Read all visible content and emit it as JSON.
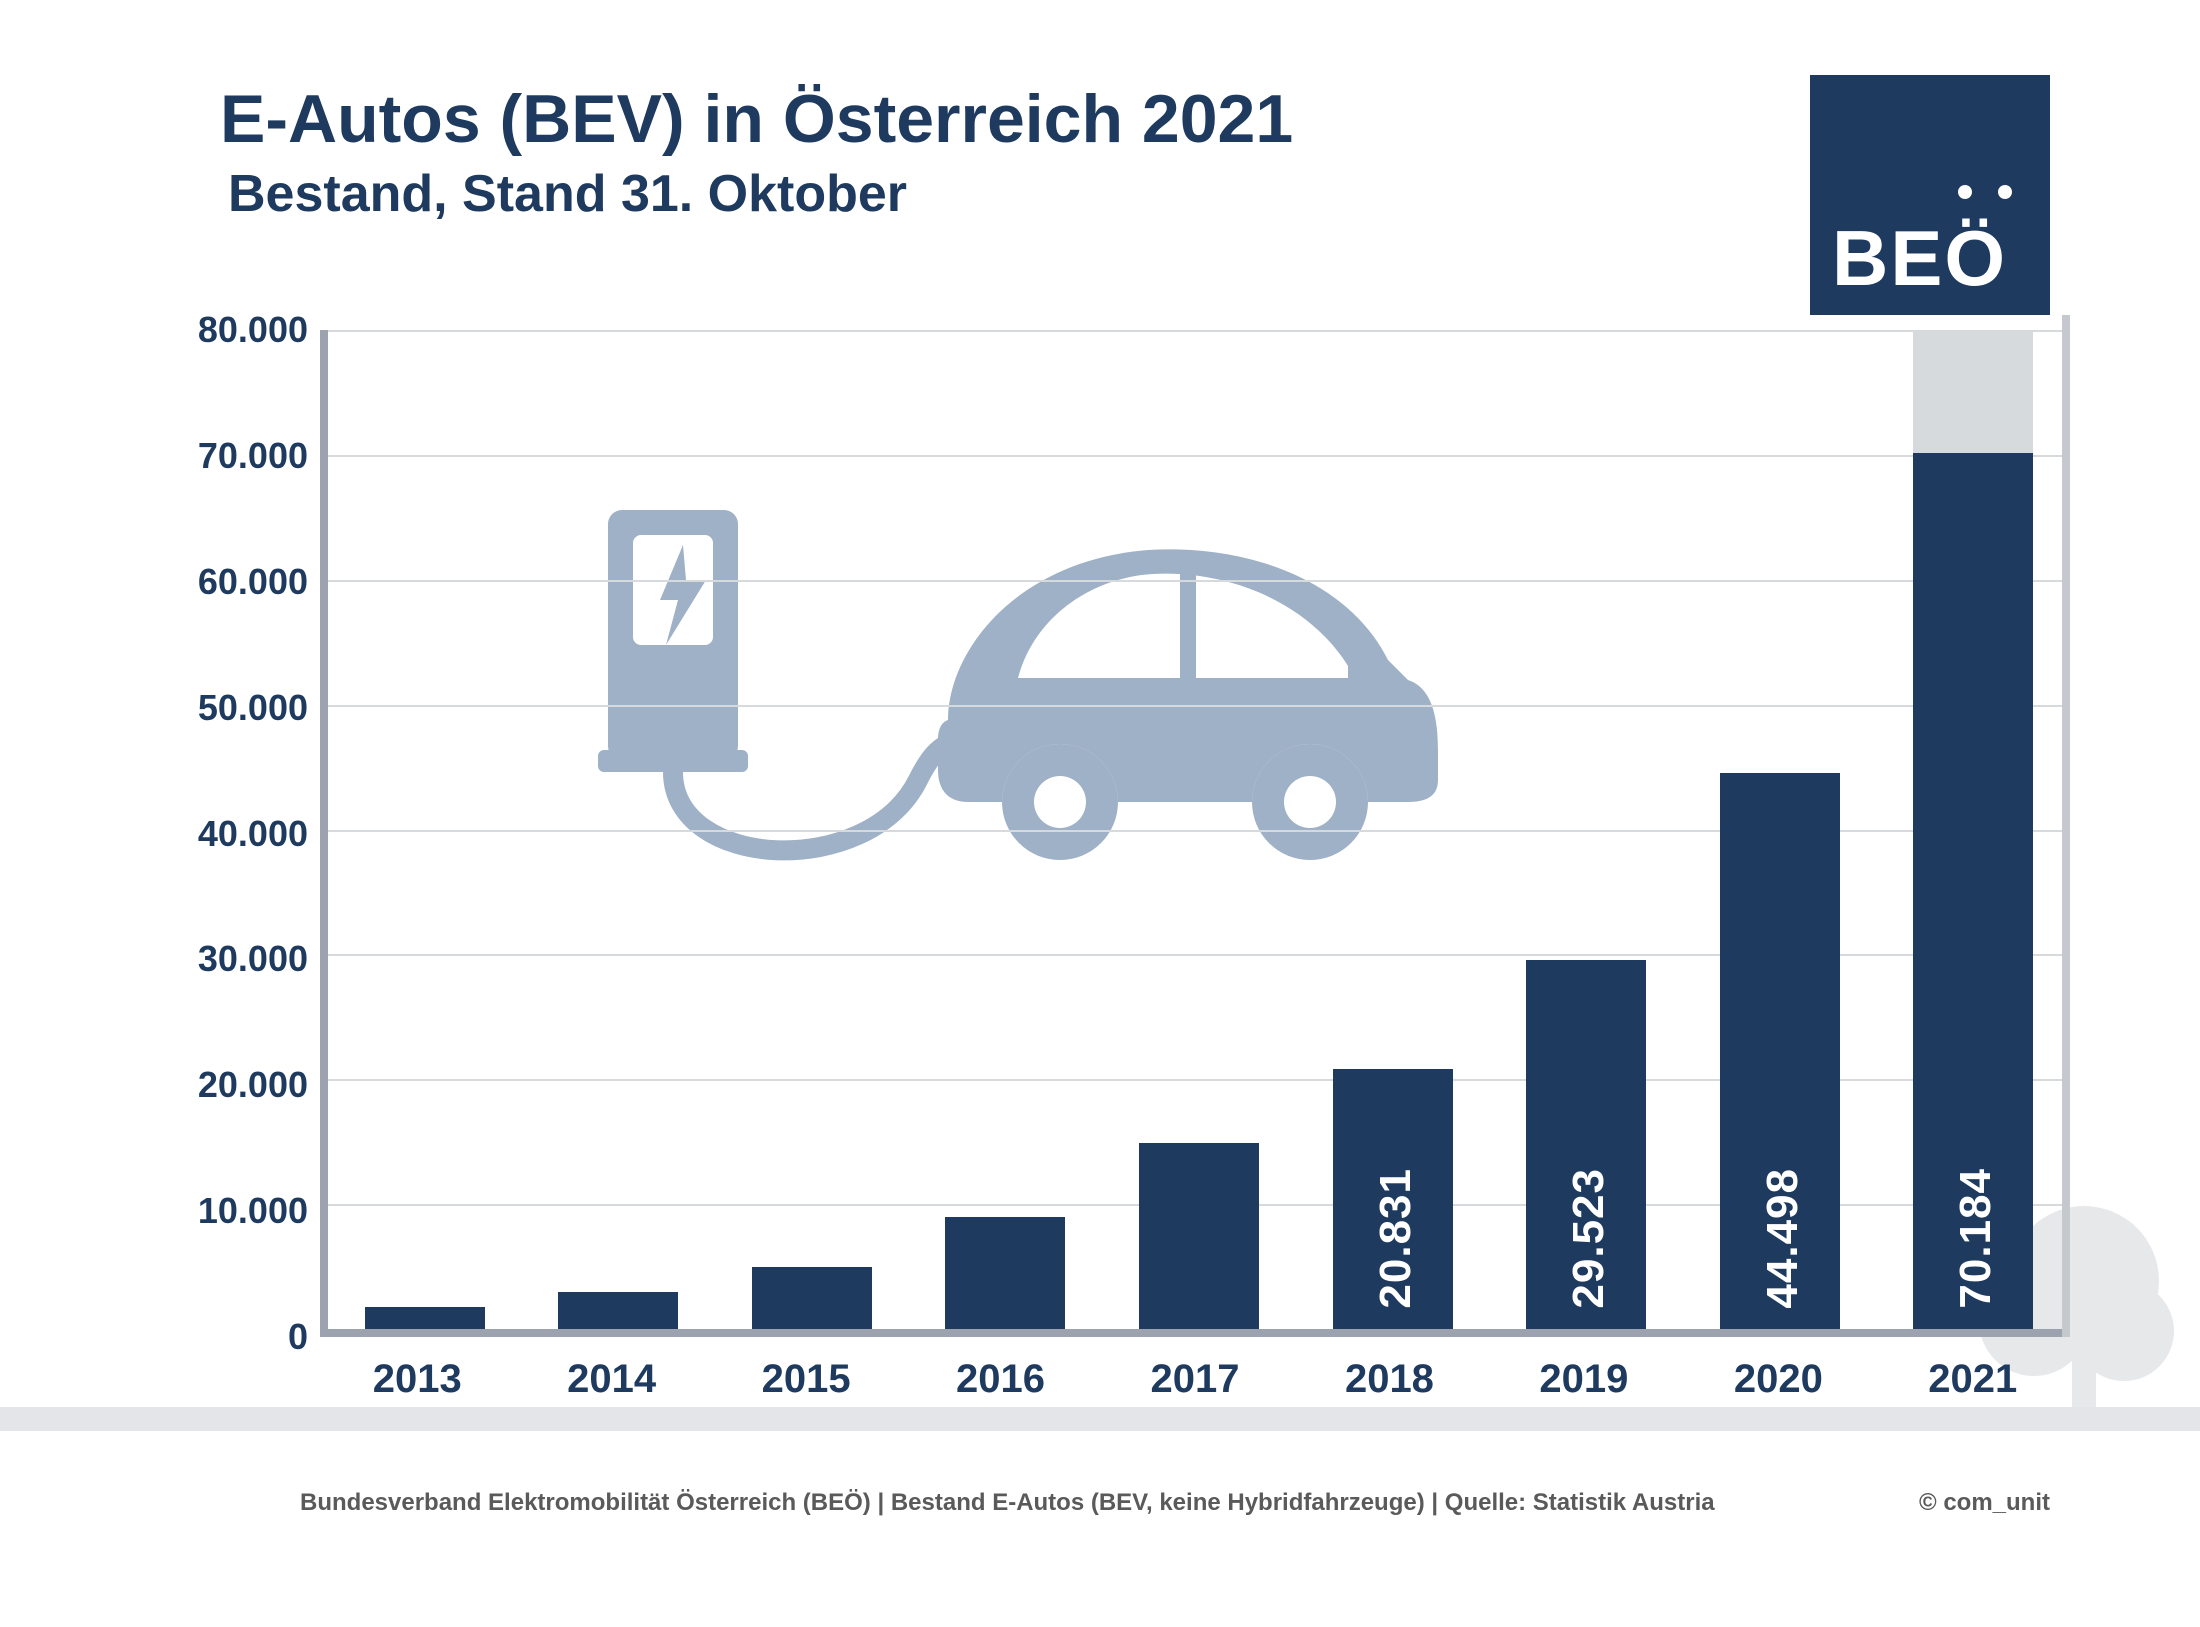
{
  "header": {
    "title": "E-Autos (BEV) in Österreich 2021",
    "subtitle": "Bestand, Stand 31. Oktober"
  },
  "logo": {
    "text": "BEÖ",
    "background_color": "#1e3a5f",
    "text_color": "#ffffff"
  },
  "chart": {
    "type": "bar",
    "categories": [
      "2013",
      "2014",
      "2015",
      "2016",
      "2017",
      "2018",
      "2019",
      "2020",
      "2021"
    ],
    "values": [
      1800,
      3000,
      5000,
      9000,
      14900,
      20831,
      29523,
      44498,
      70184
    ],
    "ghost_value_2021": 80000,
    "bar_labels": [
      "",
      "",
      "",
      "",
      "",
      "20.831",
      "29.523",
      "44.498",
      "70.184"
    ],
    "bar_color": "#1e3a5f",
    "ghost_bar_color": "#d7dadd",
    "bar_label_color": "#ffffff",
    "bar_label_fontsize": 44,
    "ylim": [
      0,
      80000
    ],
    "yticks": [
      0,
      10000,
      20000,
      30000,
      40000,
      50000,
      60000,
      70000,
      80000
    ],
    "ytick_labels": [
      "0",
      "10.000",
      "20.000",
      "30.000",
      "40.000",
      "50.000",
      "60.000",
      "70.000",
      "80.000"
    ],
    "axis_color": "#9ca3af",
    "grid_color": "#d7dadd",
    "tick_fontcolor": "#1e3a5f",
    "tick_fontsize": 36,
    "xlabel_fontsize": 40,
    "bar_width_ratio": 0.62,
    "background_color": "#ffffff",
    "decor_icon_color": "#9fb1c6",
    "decor_tree_color": "#e6e8ea"
  },
  "footer": {
    "source": "Bundesverband Elektromobilität Österreich (BEÖ) | Bestand E-Autos (BEV, keine Hybridfahrzeuge) | Quelle: Statistik Austria",
    "credit": "© com_unit",
    "text_color": "#5a5a5a"
  }
}
